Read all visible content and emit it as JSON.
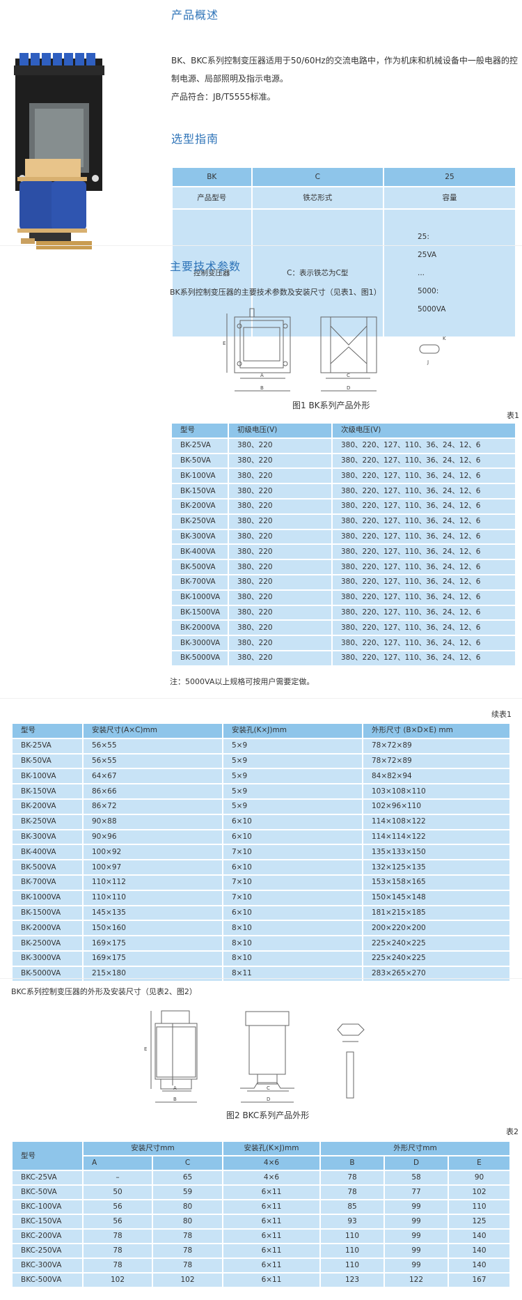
{
  "overview": {
    "title": "产品概述",
    "lines": [
      "BK、BKC系列控制变压器适用于50/60Hz的交流电路中，作为机床和机械设备中一般电器的控",
      "制电源、局部照明及指示电源。",
      "产品符合：JB/T5555标准。"
    ]
  },
  "selection": {
    "title": "选型指南",
    "codes": [
      "BK",
      "C",
      "25"
    ],
    "labels": [
      "产品型号",
      "铁芯形式",
      "容量"
    ],
    "desc": [
      "控制变压器",
      "C：表示铁芯为C型"
    ],
    "capacity": [
      "25:",
      "25VA",
      "...",
      "5000:",
      "5000VA"
    ]
  },
  "params": {
    "title": "主要技术参数",
    "subtitle": "BK系列控制变压器的主要技术参数及安装尺寸（见表1、图1）",
    "figure_caption": "图1  BK系列产品外形",
    "figure_labels": [
      "A",
      "B",
      "C",
      "D",
      "E",
      "K",
      "J"
    ],
    "table_label": "表1",
    "table": {
      "headers": [
        "型号",
        "初级电压(V)",
        "次级电压(V)"
      ],
      "rows": [
        [
          "BK-25VA",
          "380、220",
          "380、220、127、110、36、24、12、6"
        ],
        [
          "BK-50VA",
          "380、220",
          "380、220、127、110、36、24、12、6"
        ],
        [
          "BK-100VA",
          "380、220",
          "380、220、127、110、36、24、12、6"
        ],
        [
          "BK-150VA",
          "380、220",
          "380、220、127、110、36、24、12、6"
        ],
        [
          "BK-200VA",
          "380、220",
          "380、220、127、110、36、24、12、6"
        ],
        [
          "BK-250VA",
          "380、220",
          "380、220、127、110、36、24、12、6"
        ],
        [
          "BK-300VA",
          "380、220",
          "380、220、127、110、36、24、12、6"
        ],
        [
          "BK-400VA",
          "380、220",
          "380、220、127、110、36、24、12、6"
        ],
        [
          "BK-500VA",
          "380、220",
          "380、220、127、110、36、24、12、6"
        ],
        [
          "BK-700VA",
          "380、220",
          "380、220、127、110、36、24、12、6"
        ],
        [
          "BK-1000VA",
          "380、220",
          "380、220、127、110、36、24、12、6"
        ],
        [
          "BK-1500VA",
          "380、220",
          "380、220、127、110、36、24、12、6"
        ],
        [
          "BK-2000VA",
          "380、220",
          "380、220、127、110、36、24、12、6"
        ],
        [
          "BK-3000VA",
          "380、220",
          "380、220、127、110、36、24、12、6"
        ],
        [
          "BK-5000VA",
          "380、220",
          "380、220、127、110、36、24、12、6"
        ]
      ]
    },
    "note": "注：5000VA以上规格可按用户需要定做。"
  },
  "cont": {
    "table_label": "续表1",
    "headers": [
      "型号",
      "安装尺寸(A×C)mm",
      "安装孔(K×J)mm",
      "外形尺寸 (B×D×E) mm"
    ],
    "rows": [
      [
        "BK-25VA",
        "56×55",
        "5×9",
        "78×72×89"
      ],
      [
        "BK-50VA",
        "56×55",
        "5×9",
        "78×72×89"
      ],
      [
        "BK-100VA",
        "64×67",
        "5×9",
        "84×82×94"
      ],
      [
        "BK-150VA",
        "86×66",
        "5×9",
        "103×108×110"
      ],
      [
        "BK-200VA",
        "86×72",
        "5×9",
        "102×96×110"
      ],
      [
        "BK-250VA",
        "90×88",
        "6×10",
        "114×108×122"
      ],
      [
        "BK-300VA",
        "90×96",
        "6×10",
        "114×114×122"
      ],
      [
        "BK-400VA",
        "100×92",
        "7×10",
        "135×133×150"
      ],
      [
        "BK-500VA",
        "100×97",
        "6×10",
        "132×125×135"
      ],
      [
        "BK-700VA",
        "110×112",
        "7×10",
        "153×158×165"
      ],
      [
        "BK-1000VA",
        "110×110",
        "7×10",
        "150×145×148"
      ],
      [
        "BK-1500VA",
        "145×135",
        "6×10",
        "181×215×185"
      ],
      [
        "BK-2000VA",
        "150×160",
        "8×10",
        "200×220×200"
      ],
      [
        "BK-2500VA",
        "169×175",
        "8×10",
        "225×240×225"
      ],
      [
        "BK-3000VA",
        "169×175",
        "8×10",
        "225×240×225"
      ],
      [
        "BK-5000VA",
        "215×180",
        "8×11",
        "283×265×270"
      ]
    ]
  },
  "bkc": {
    "subtitle": "BKC系列控制变压器的外形及安装尺寸（见表2、图2）",
    "figure_caption": "图2  BKC系列产品外形",
    "table_label": "表2",
    "group_headers": [
      "型号",
      "安装尺寸mm",
      "安装孔(K×J)mm",
      "外形尺寸mm"
    ],
    "sub_headers": [
      "A",
      "C",
      "4×6",
      "B",
      "D",
      "E"
    ],
    "rows": [
      [
        "BKC-25VA",
        "–",
        "65",
        "4×6",
        "78",
        "58",
        "90"
      ],
      [
        "BKC-50VA",
        "50",
        "59",
        "6×11",
        "78",
        "77",
        "102"
      ],
      [
        "BKC-100VA",
        "56",
        "80",
        "6×11",
        "85",
        "99",
        "110"
      ],
      [
        "BKC-150VA",
        "56",
        "80",
        "6×11",
        "93",
        "99",
        "125"
      ],
      [
        "BKC-200VA",
        "78",
        "78",
        "6×11",
        "110",
        "99",
        "140"
      ],
      [
        "BKC-250VA",
        "78",
        "78",
        "6×11",
        "110",
        "99",
        "140"
      ],
      [
        "BKC-300VA",
        "78",
        "78",
        "6×11",
        "110",
        "99",
        "140"
      ],
      [
        "BKC-500VA",
        "102",
        "102",
        "6×11",
        "123",
        "122",
        "167"
      ]
    ]
  },
  "colors": {
    "heading": "#2f74b8",
    "header_bg": "#8ec5ea",
    "cell_bg": "#c8e3f6"
  }
}
